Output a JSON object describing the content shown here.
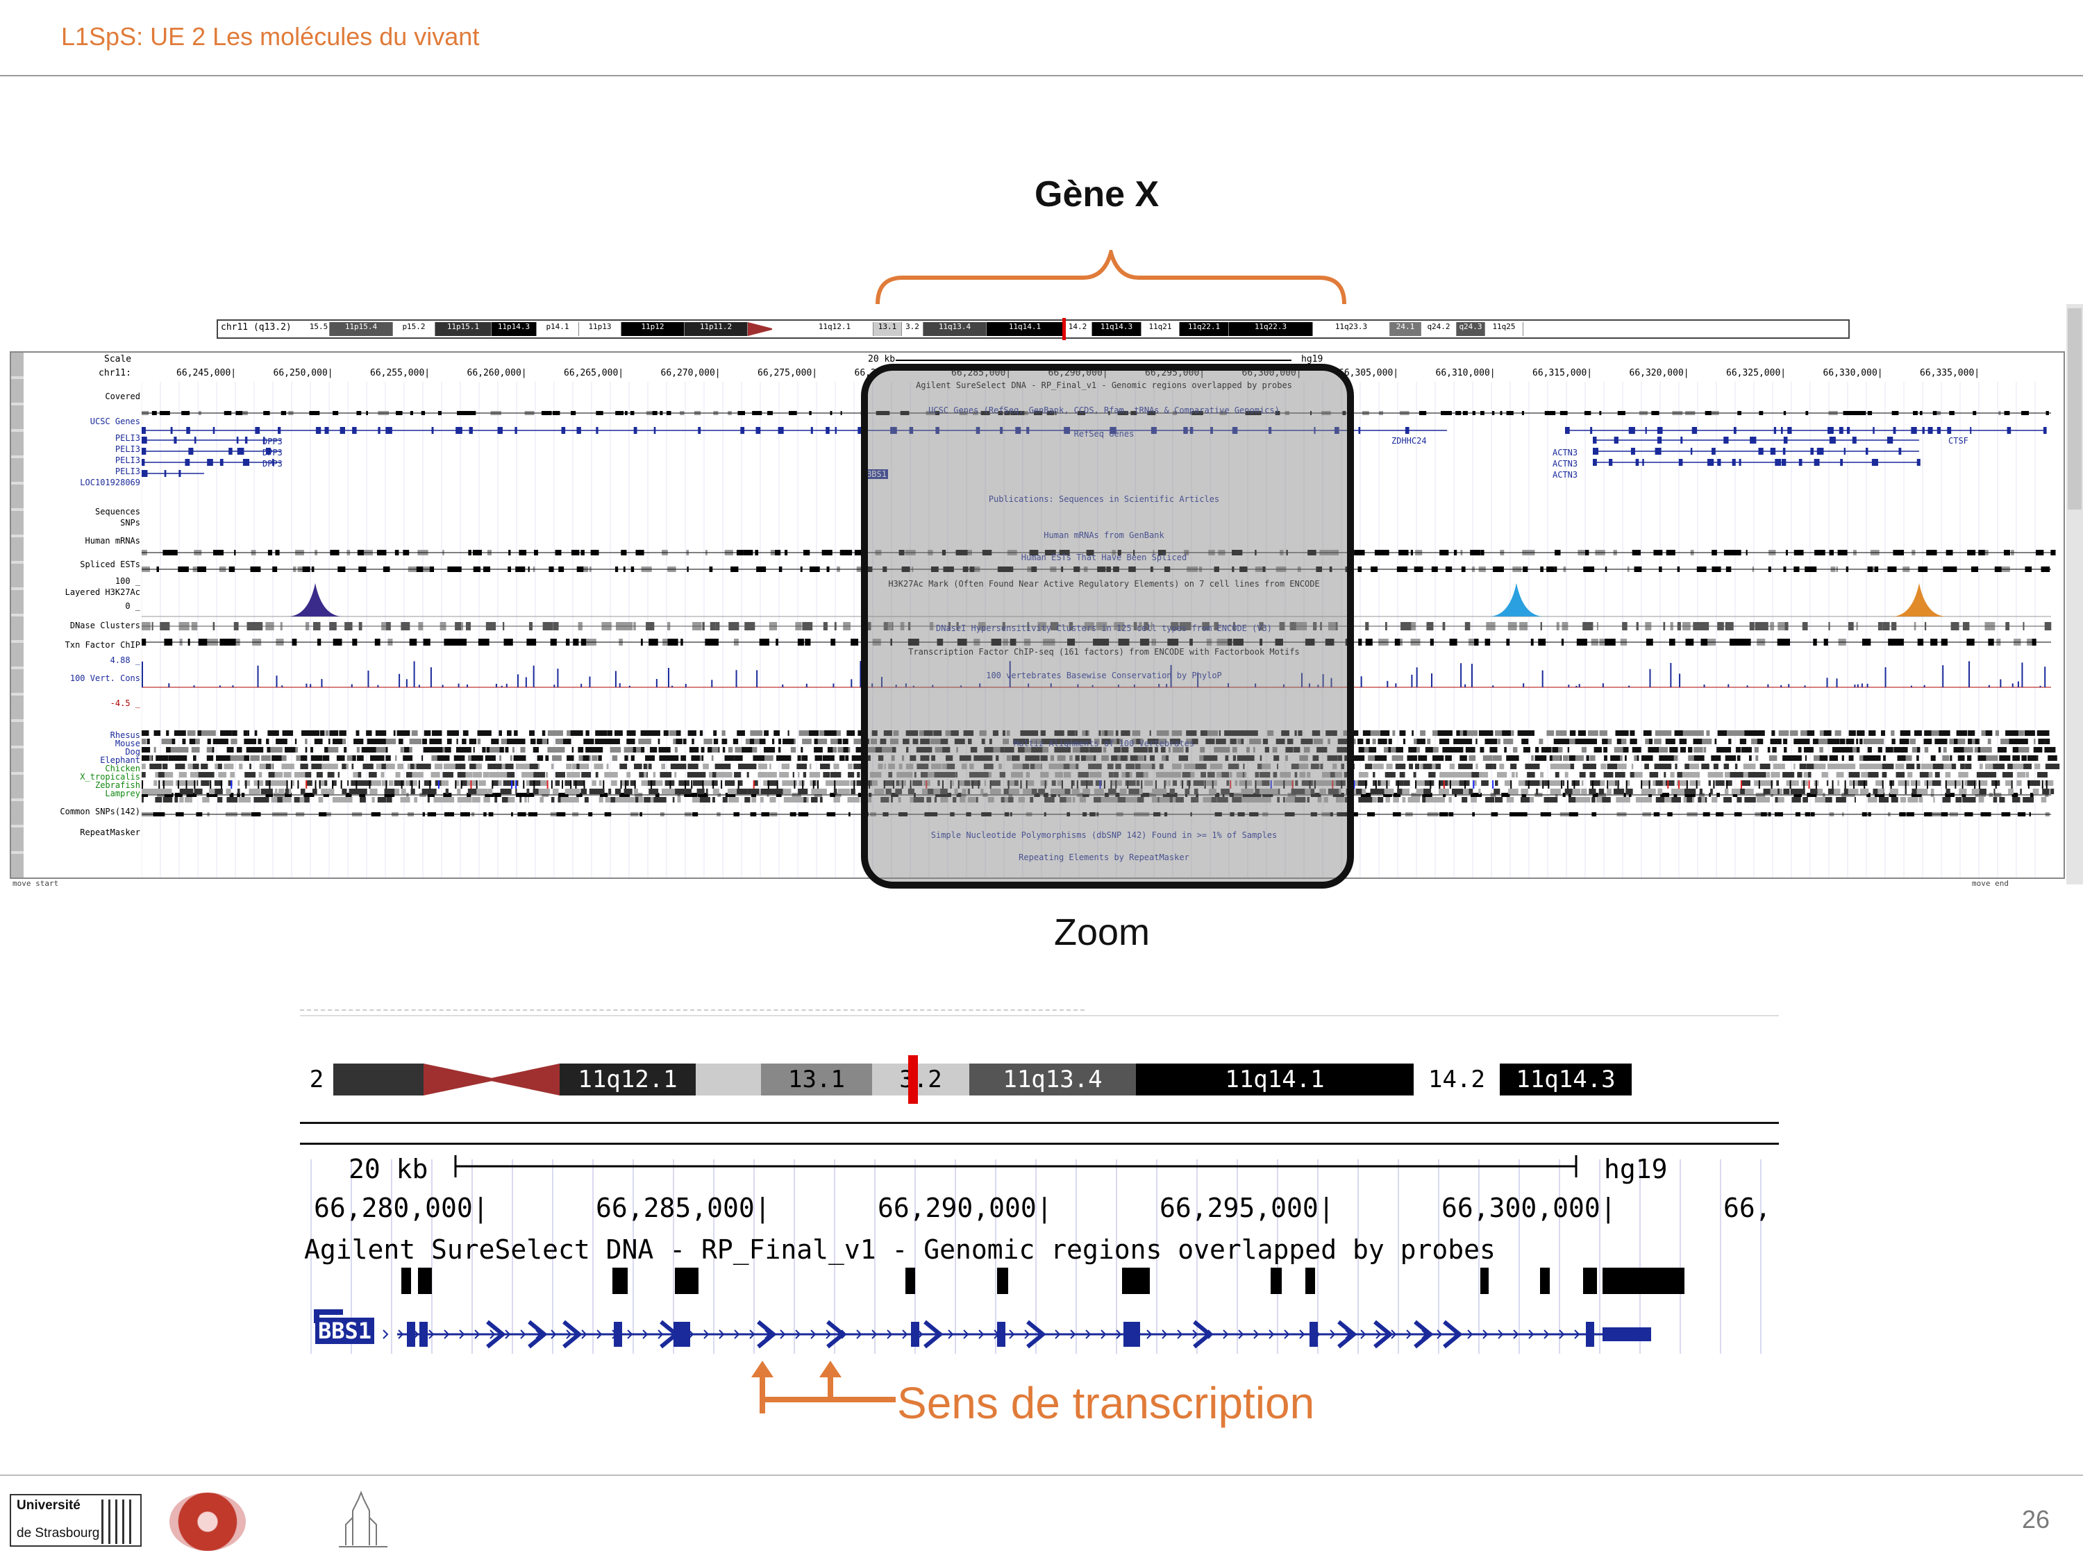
{
  "header": {
    "course": "L1SpS: UE 2 Les molécules du vivant"
  },
  "annotations": {
    "gene_label": "Gène X",
    "zoom_label": "Zoom",
    "transcription_label": "Sens de transcription"
  },
  "ideogram": {
    "label": "chr11 (q13.2)",
    "bands": [
      "15.5",
      "11p15.4",
      "p15.2",
      "11p15.1",
      "11p14.3",
      "p14.1",
      "11p13",
      "11p12",
      "11p11.2",
      "11q12.1",
      "13.1",
      "3.2",
      "11q13.4",
      "11q14.1",
      "14.2",
      "11q14.3",
      "11q21",
      "11q22.1",
      "11q22.3",
      "11q23.3",
      "24.1",
      "q24.2",
      "q24.3",
      "11q25"
    ]
  },
  "browser": {
    "scale_label": "Scale",
    "chrom_label": "chr11:",
    "scale_bar": "20 kb",
    "assembly": "hg19",
    "ruler_ticks": [
      "66,245,000|",
      "66,250,000|",
      "66,255,000|",
      "66,260,000|",
      "66,265,000|",
      "66,270,000|",
      "66,275,000|",
      "66,2",
      "66,285,000|",
      "66,290,000|",
      "66,295,000|",
      "66,300,000|",
      "66,305,000|",
      "66,310,000|",
      "66,315,000|",
      "66,320,000|",
      "66,325,000|",
      "66,330,000|",
      "66,335,000|"
    ],
    "track_labels": [
      {
        "text": "Covered",
        "color": "#000000"
      },
      {
        "text": "UCSC Genes",
        "color": "#1a2a9a"
      },
      {
        "text": "PELI3",
        "color": "#1a2a9a"
      },
      {
        "text": "PELI3",
        "color": "#1a2a9a"
      },
      {
        "text": "PELI3",
        "color": "#1a2a9a"
      },
      {
        "text": "PELI3",
        "color": "#1a2a9a"
      },
      {
        "text": "LOC101928069",
        "color": "#1a2a9a"
      },
      {
        "text": "Sequences",
        "color": "#000000"
      },
      {
        "text": "SNPs",
        "color": "#000000"
      },
      {
        "text": "Human mRNAs",
        "color": "#000000"
      },
      {
        "text": "Spliced ESTs",
        "color": "#000000"
      },
      {
        "text": "100 _",
        "color": "#000000"
      },
      {
        "text": "Layered H3K27Ac",
        "color": "#000000"
      },
      {
        "text": "0 _",
        "color": "#000000"
      },
      {
        "text": "DNase Clusters",
        "color": "#000000"
      },
      {
        "text": "Txn Factor ChIP",
        "color": "#000000"
      },
      {
        "text": "4.88 _",
        "color": "#1a2a9a"
      },
      {
        "text": "100 Vert. Cons",
        "color": "#1a2a9a"
      },
      {
        "text": "-4.5 _",
        "color": "#b00000"
      },
      {
        "text": "Rhesus",
        "color": "#1a2a9a"
      },
      {
        "text": "Mouse",
        "color": "#1a2a9a"
      },
      {
        "text": "Dog",
        "color": "#1a2a9a"
      },
      {
        "text": "Elephant",
        "color": "#1a2a9a"
      },
      {
        "text": "Chicken",
        "color": "#118811"
      },
      {
        "text": "X_tropicalis",
        "color": "#118811"
      },
      {
        "text": "Zebrafish",
        "color": "#118811"
      },
      {
        "text": "Lamprey",
        "color": "#118811"
      },
      {
        "text": "Common SNPs(142)",
        "color": "#000000"
      },
      {
        "text": "RepeatMasker",
        "color": "#000000"
      }
    ],
    "gene_names_left": [
      "DPP3",
      "DPP3",
      "DPP3"
    ],
    "gene_names_right": [
      "ZDHHC24",
      "CTSF",
      "ACTN3",
      "ACTN3",
      "ACTN3"
    ],
    "track_titles": [
      "Agilent SureSelect DNA - RP_Final_v1 - Genomic regions overlapped by probes",
      "UCSC Genes (RefSeq, GenBank, CCDS, Rfam, tRNAs & Comparative Genomics)",
      "RefSeq Genes",
      "Publications: Sequences in Scientific Articles",
      "Human mRNAs from GenBank",
      "Human ESTs That Have Been Spliced",
      "H3K27Ac Mark (Often Found Near Active Regulatory Elements) on 7 cell lines from ENCODE",
      "DNaseI Hypersensitivity Clusters in 125 cell types from ENCODE (V3)",
      "Transcription Factor ChIP-seq (161 factors) from ENCODE with Factorbook Motifs",
      "100 vertebrates Basewise Conservation by PhyloP",
      "Multiz Alignments of 100 Vertebrates",
      "Simple Nucleotide Polymorphisms (dbSNP 142) Found in >= 1% of Samples",
      "Repeating Elements by RepeatMasker"
    ],
    "bbs1_small": "BBS1",
    "move_start": "move start",
    "move_end": "move end"
  },
  "zoom": {
    "bands": [
      "2",
      "11q12.1",
      "13.1",
      "3.2",
      "11q13.4",
      "11q14.1",
      "14.2",
      "11q14.3"
    ],
    "scale_bar": "20 kb",
    "assembly": "hg19",
    "ruler_ticks": [
      "66,280,000|",
      "66,285,000|",
      "66,290,000|",
      "66,295,000|",
      "66,300,000|",
      "66,"
    ],
    "probe_title": "Agilent SureSelect DNA - RP_Final_v1 - Genomic regions overlapped by probes",
    "gene_name": "BBS1"
  },
  "page_number": "26",
  "logos": {
    "university_line1": "Université",
    "university_line2": "de Strasbourg"
  },
  "colors": {
    "accent": "#e07b39",
    "gene": "#1a2a9a",
    "centromere": "#a03030"
  }
}
